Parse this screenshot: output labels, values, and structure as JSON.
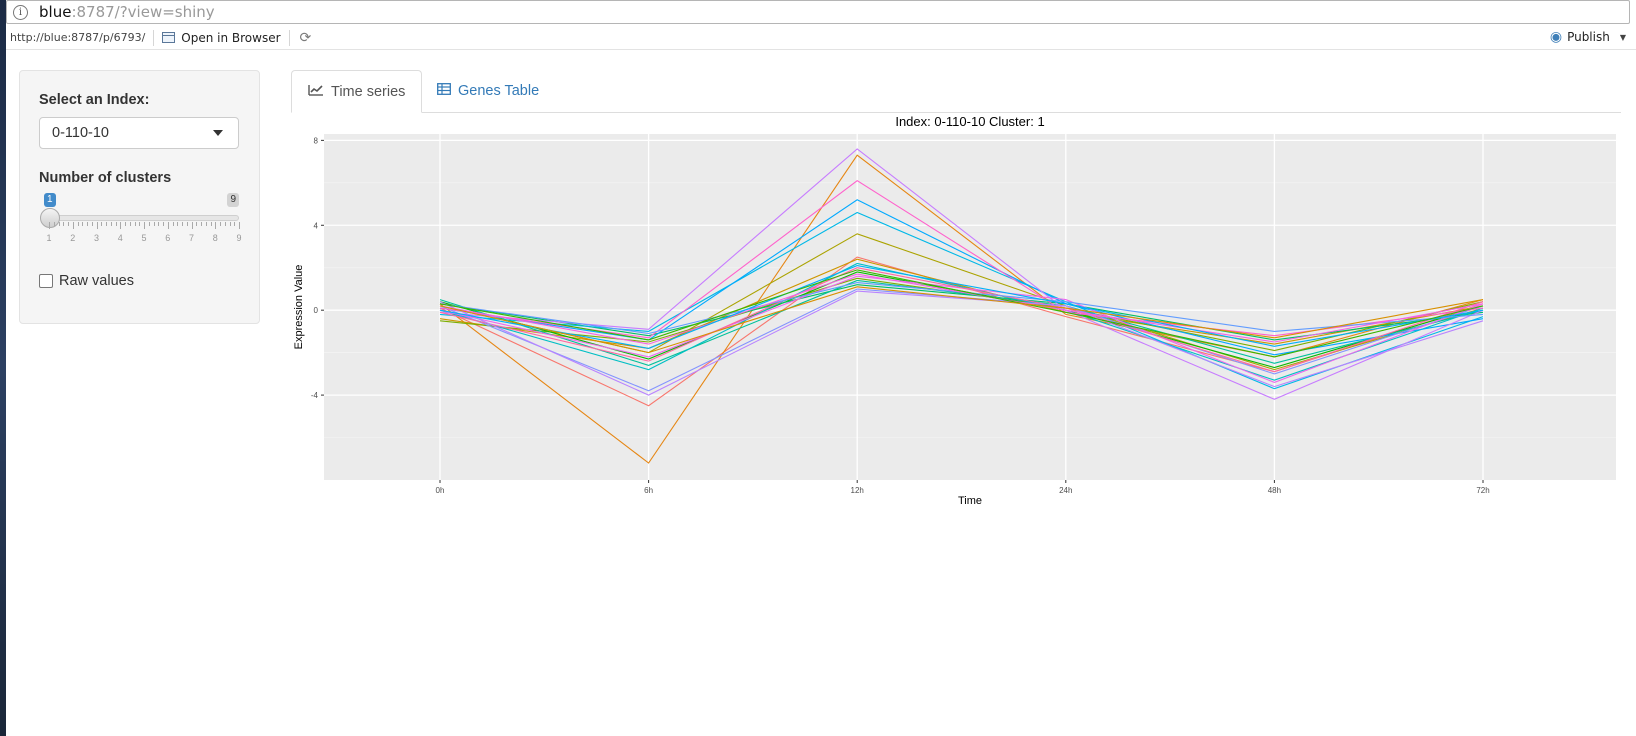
{
  "browser": {
    "url_host": "blue",
    "url_rest": ":8787/?view=shiny"
  },
  "rstudio_toolbar": {
    "app_url": "http://blue:8787/p/6793/",
    "open_in_browser": "Open in Browser",
    "publish": "Publish"
  },
  "sidebar": {
    "index_label": "Select an Index:",
    "index_value": "0-110-10",
    "clusters_label": "Number of clusters",
    "slider_value": "1",
    "slider_max": "9",
    "slider_ticks": [
      "1",
      "2",
      "3",
      "4",
      "5",
      "6",
      "7",
      "8",
      "9"
    ],
    "raw_values_label": "Raw values",
    "raw_values_checked": false
  },
  "tabs": {
    "time_series": "Time series",
    "genes_table": "Genes Table"
  },
  "colors": {
    "panel_bg": "#ebebeb",
    "tab_link": "#337ab7",
    "slider_badge": "#428bca"
  },
  "chart_data": {
    "type": "line",
    "title": "Index: 0-110-10 Cluster: 1",
    "xlabel": "Time",
    "ylabel": "Expression Value",
    "categories": [
      "0h",
      "6h",
      "12h",
      "24h",
      "48h",
      "72h"
    ],
    "yticks": [
      -4,
      0,
      4,
      8
    ],
    "ylim": [
      -8,
      8.3
    ],
    "grid": true,
    "legend": "none",
    "series": [
      {
        "color": "#F8766D",
        "values": [
          0.1,
          -4.5,
          2.5,
          -0.3,
          -2.9,
          0.3
        ]
      },
      {
        "color": "#E68613",
        "values": [
          0.3,
          -7.2,
          7.3,
          -0.2,
          -2.2,
          0.5
        ]
      },
      {
        "color": "#CD9600",
        "values": [
          -0.4,
          -1.8,
          2.4,
          -0.1,
          -1.6,
          0.2
        ]
      },
      {
        "color": "#ABA300",
        "values": [
          0.2,
          -2.0,
          3.6,
          0.2,
          -2.8,
          0.1
        ]
      },
      {
        "color": "#7CAE00",
        "values": [
          -0.5,
          -1.5,
          1.5,
          0.1,
          -1.9,
          0.4
        ]
      },
      {
        "color": "#0CB702",
        "values": [
          0.4,
          -2.3,
          1.8,
          0.0,
          -2.7,
          0.2
        ]
      },
      {
        "color": "#00BE67",
        "values": [
          0.3,
          -1.2,
          1.2,
          0.3,
          -1.4,
          -0.1
        ]
      },
      {
        "color": "#00C19A",
        "values": [
          0.5,
          -2.6,
          1.4,
          0.2,
          -2.5,
          0.0
        ]
      },
      {
        "color": "#00BFC4",
        "values": [
          0.0,
          -2.8,
          2.2,
          0.0,
          -3.3,
          0.1
        ]
      },
      {
        "color": "#00B8E7",
        "values": [
          -0.2,
          -1.0,
          4.6,
          0.4,
          -3.7,
          -0.3
        ]
      },
      {
        "color": "#00A9FF",
        "values": [
          0.1,
          -1.4,
          5.2,
          0.3,
          -2.1,
          -0.4
        ]
      },
      {
        "color": "#8494FF",
        "values": [
          0.2,
          -3.8,
          1.0,
          0.2,
          -3.0,
          0.2
        ]
      },
      {
        "color": "#C77CFF",
        "values": [
          -0.1,
          -0.9,
          7.6,
          0.0,
          -4.2,
          0.0
        ]
      },
      {
        "color": "#ED68ED",
        "values": [
          0.0,
          -2.2,
          1.6,
          0.5,
          -3.4,
          0.3
        ]
      },
      {
        "color": "#FF61CC",
        "values": [
          0.1,
          -1.3,
          6.1,
          -0.1,
          -1.2,
          0.1
        ]
      },
      {
        "color": "#FF68A1",
        "values": [
          -0.1,
          -2.4,
          2.0,
          0.1,
          -2.9,
          0.4
        ]
      },
      {
        "color": "#619CFF",
        "values": [
          0.3,
          -1.1,
          1.3,
          0.4,
          -1.0,
          -0.2
        ]
      },
      {
        "color": "#B983FF",
        "values": [
          0.4,
          -4.0,
          0.9,
          0.2,
          -3.6,
          -0.5
        ]
      },
      {
        "color": "#F564E3",
        "values": [
          0.2,
          -1.6,
          1.7,
          0.0,
          -1.5,
          0.3
        ]
      },
      {
        "color": "#00B0F6",
        "values": [
          0.0,
          -1.8,
          2.1,
          0.3,
          -1.7,
          0.0
        ]
      },
      {
        "color": "#39B600",
        "values": [
          0.3,
          -1.4,
          1.9,
          -0.1,
          -2.2,
          0.2
        ]
      },
      {
        "color": "#D89000",
        "values": [
          0.2,
          -2.0,
          1.1,
          0.1,
          -1.3,
          0.5
        ]
      }
    ]
  }
}
